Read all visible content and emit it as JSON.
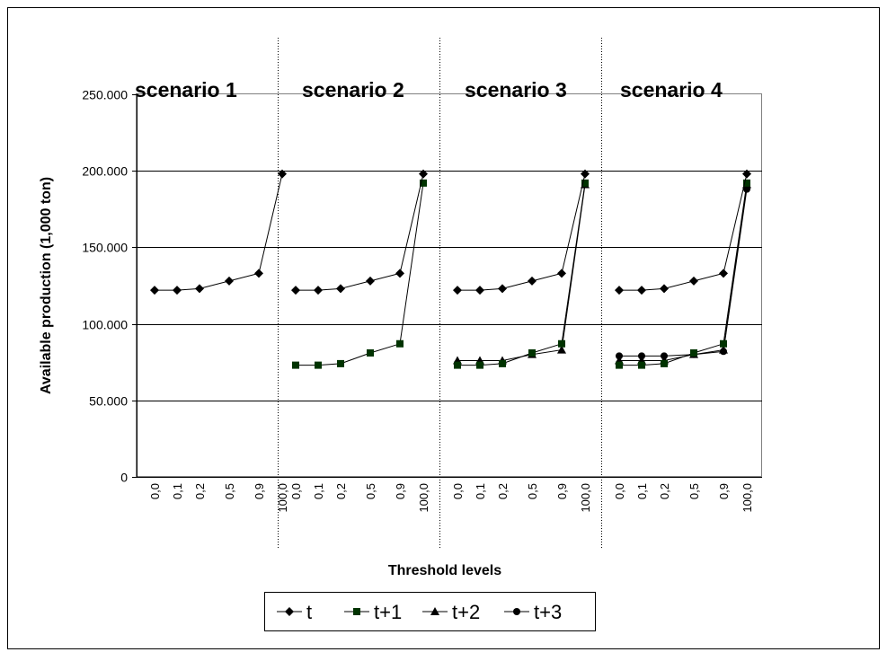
{
  "chart_data": {
    "type": "line",
    "xlabel": "Threshold levels",
    "ylabel": "Available production (1,000 ton)",
    "ylim": [
      0,
      250000
    ],
    "y_ticks": [
      "0",
      "50.000",
      "100.000",
      "150.000",
      "200.000",
      "250.000"
    ],
    "y_tick_values": [
      0,
      50000,
      100000,
      150000,
      200000,
      250000
    ],
    "grid": "horizontal",
    "legend_position": "bottom",
    "categories": [
      "0,0",
      "0,1",
      "0,2",
      "0,5",
      "0,9",
      "100,0"
    ],
    "panels": [
      {
        "title": "scenario 1",
        "series": [
          {
            "name": "t",
            "values": [
              122000,
              122000,
              123000,
              128000,
              133000,
              198000
            ]
          }
        ]
      },
      {
        "title": "scenario 2",
        "series": [
          {
            "name": "t",
            "values": [
              122000,
              122000,
              123000,
              128000,
              133000,
              198000
            ]
          },
          {
            "name": "t+1",
            "values": [
              73000,
              73000,
              74000,
              81000,
              87000,
              192000
            ]
          }
        ]
      },
      {
        "title": "scenario 3",
        "series": [
          {
            "name": "t",
            "values": [
              122000,
              122000,
              123000,
              128000,
              133000,
              198000
            ]
          },
          {
            "name": "t+1",
            "values": [
              73000,
              73000,
              74000,
              81000,
              87000,
              192000
            ]
          },
          {
            "name": "t+2",
            "values": [
              76000,
              76000,
              76000,
              80000,
              83000,
              191000
            ]
          }
        ]
      },
      {
        "title": "scenario 4",
        "series": [
          {
            "name": "t",
            "values": [
              122000,
              122000,
              123000,
              128000,
              133000,
              198000
            ]
          },
          {
            "name": "t+1",
            "values": [
              73000,
              73000,
              74000,
              81000,
              87000,
              192000
            ]
          },
          {
            "name": "t+2",
            "values": [
              76000,
              76000,
              76000,
              80000,
              83000,
              191000
            ]
          },
          {
            "name": "t+3",
            "values": [
              79000,
              79000,
              79000,
              80000,
              82000,
              188000
            ]
          }
        ]
      }
    ],
    "legend": [
      {
        "name": "t",
        "marker": "diamond",
        "color": "#000000"
      },
      {
        "name": "t+1",
        "marker": "square",
        "color": "#003300"
      },
      {
        "name": "t+2",
        "marker": "triangle",
        "color": "#000000"
      },
      {
        "name": "t+3",
        "marker": "circle",
        "color": "#000000"
      }
    ]
  }
}
